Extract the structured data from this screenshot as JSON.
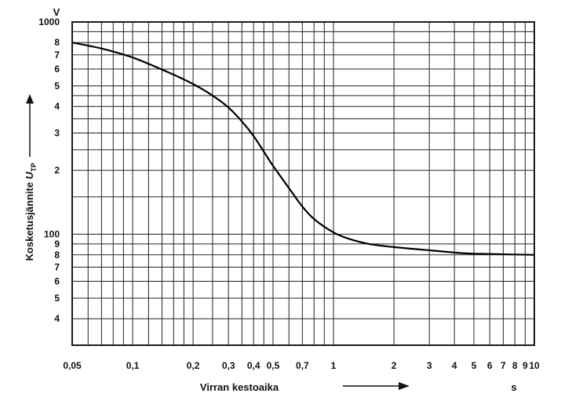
{
  "chart_data": {
    "type": "line",
    "xscale": "log",
    "yscale": "log",
    "xlabel": "Virran kestoaika",
    "xunit": "s",
    "ylabel_main": "Kosketusjännite ",
    "ylabel_var": "U",
    "ylabel_sub": "TP",
    "yunit": "V",
    "xlim": [
      0.05,
      10
    ],
    "ylim": [
      30,
      1000
    ],
    "grid": true,
    "x_tick_labels": [
      {
        "v": 0.05,
        "t": "0,05"
      },
      {
        "v": 0.1,
        "t": "0,1"
      },
      {
        "v": 0.2,
        "t": "0,2"
      },
      {
        "v": 0.3,
        "t": "0,3"
      },
      {
        "v": 0.4,
        "t": "0,4"
      },
      {
        "v": 0.5,
        "t": "0,5"
      },
      {
        "v": 0.7,
        "t": "0,7"
      },
      {
        "v": 1,
        "t": "1"
      },
      {
        "v": 2,
        "t": "2"
      },
      {
        "v": 3,
        "t": "3"
      },
      {
        "v": 4,
        "t": "4"
      },
      {
        "v": 5,
        "t": "5"
      },
      {
        "v": 6,
        "t": "6"
      },
      {
        "v": 7,
        "t": "7"
      },
      {
        "v": 8,
        "t": "8"
      },
      {
        "v": 9,
        "t": "9"
      },
      {
        "v": 10,
        "t": "10"
      }
    ],
    "y_tick_labels": [
      {
        "v": 1000,
        "t": "1000"
      },
      {
        "v": 800,
        "t": "8"
      },
      {
        "v": 700,
        "t": "7"
      },
      {
        "v": 600,
        "t": "6"
      },
      {
        "v": 500,
        "t": "5"
      },
      {
        "v": 400,
        "t": "4"
      },
      {
        "v": 300,
        "t": "3"
      },
      {
        "v": 200,
        "t": "2"
      },
      {
        "v": 100,
        "t": "100"
      },
      {
        "v": 90,
        "t": "9"
      },
      {
        "v": 80,
        "t": "8"
      },
      {
        "v": 70,
        "t": "7"
      },
      {
        "v": 60,
        "t": "6"
      },
      {
        "v": 50,
        "t": "5"
      },
      {
        "v": 40,
        "t": "4"
      }
    ],
    "x_grid": [
      0.05,
      0.06,
      0.07,
      0.08,
      0.09,
      0.1,
      0.12,
      0.14,
      0.16,
      0.18,
      0.2,
      0.25,
      0.3,
      0.35,
      0.4,
      0.45,
      0.5,
      0.6,
      0.7,
      0.8,
      0.9,
      1,
      2,
      3,
      4,
      5,
      6,
      7,
      8,
      9,
      10
    ],
    "y_grid": [
      30,
      40,
      50,
      60,
      70,
      80,
      90,
      100,
      150,
      200,
      250,
      300,
      350,
      400,
      450,
      500,
      600,
      700,
      800,
      900,
      1000
    ],
    "series": [
      {
        "x": [
          0.05,
          0.07,
          0.1,
          0.15,
          0.2,
          0.25,
          0.3,
          0.35,
          0.4,
          0.45,
          0.5,
          0.6,
          0.7,
          0.8,
          1,
          1.2,
          1.5,
          2,
          3,
          4,
          5,
          10
        ],
        "y": [
          800,
          750,
          680,
          580,
          510,
          450,
          395,
          340,
          290,
          245,
          210,
          165,
          135,
          118,
          102,
          95,
          90,
          87,
          84,
          82,
          81,
          80
        ]
      }
    ]
  }
}
